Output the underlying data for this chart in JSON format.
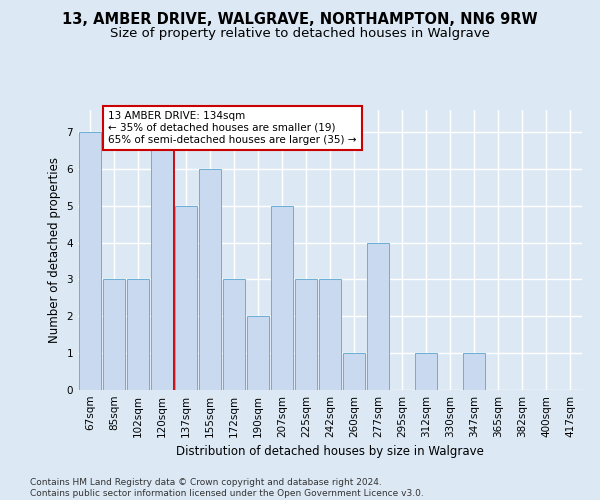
{
  "title": "13, AMBER DRIVE, WALGRAVE, NORTHAMPTON, NN6 9RW",
  "subtitle": "Size of property relative to detached houses in Walgrave",
  "xlabel": "Distribution of detached houses by size in Walgrave",
  "ylabel": "Number of detached properties",
  "categories": [
    "67sqm",
    "85sqm",
    "102sqm",
    "120sqm",
    "137sqm",
    "155sqm",
    "172sqm",
    "190sqm",
    "207sqm",
    "225sqm",
    "242sqm",
    "260sqm",
    "277sqm",
    "295sqm",
    "312sqm",
    "330sqm",
    "347sqm",
    "365sqm",
    "382sqm",
    "400sqm",
    "417sqm"
  ],
  "values": [
    7,
    3,
    3,
    7,
    5,
    6,
    3,
    2,
    5,
    3,
    3,
    1,
    4,
    0,
    1,
    0,
    1,
    0,
    0,
    0,
    0
  ],
  "bar_color": "#c9daf0",
  "bar_edge_color": "#6baed6",
  "background_color": "#dce9f5",
  "grid_color": "#ffffff",
  "vline_color": "#cc0000",
  "vline_x_index": 4,
  "annotation_text": "13 AMBER DRIVE: 134sqm\n← 35% of detached houses are smaller (19)\n65% of semi-detached houses are larger (35) →",
  "annotation_box_facecolor": "#ffffff",
  "annotation_box_edgecolor": "#cc0000",
  "footer_text": "Contains HM Land Registry data © Crown copyright and database right 2024.\nContains public sector information licensed under the Open Government Licence v3.0.",
  "ylim": [
    0,
    7.6
  ],
  "yticks": [
    0,
    1,
    2,
    3,
    4,
    5,
    6,
    7
  ],
  "title_fontsize": 10.5,
  "subtitle_fontsize": 9.5,
  "axis_label_fontsize": 8.5,
  "tick_fontsize": 7.5,
  "annotation_fontsize": 7.5,
  "footer_fontsize": 6.5
}
